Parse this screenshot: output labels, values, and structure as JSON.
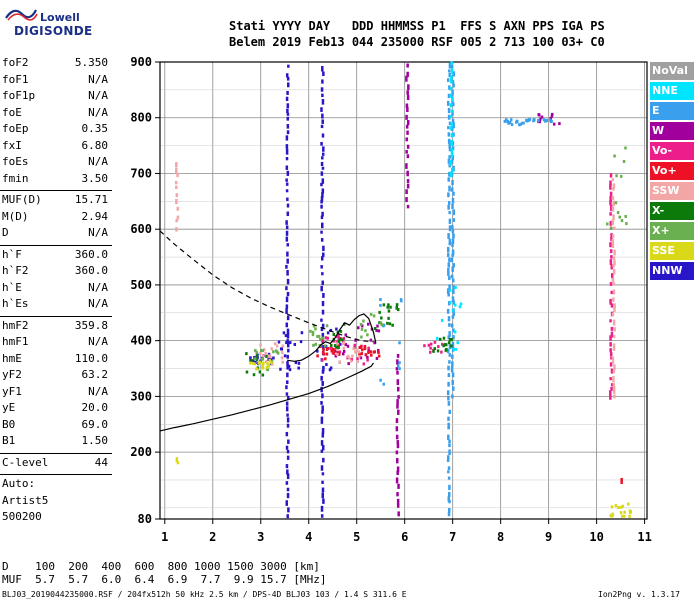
{
  "logo": {
    "line1": "Lowell",
    "line2": "DIGISONDE"
  },
  "header": {
    "line1": "Stati YYYY DAY   DDD HHMMSS P1  FFS S AXN PPS IGA PS",
    "line2": "Belem 2019 Feb13 044 235000 RSF 005 2 713 100 03+ C0"
  },
  "params": [
    {
      "label": "foF2",
      "value": "5.350"
    },
    {
      "label": "foF1",
      "value": "N/A"
    },
    {
      "label": "foF1p",
      "value": "N/A"
    },
    {
      "label": "foE",
      "value": "N/A"
    },
    {
      "label": "foEp",
      "value": "0.35"
    },
    {
      "label": "fxI",
      "value": "6.80"
    },
    {
      "label": "foEs",
      "value": "N/A"
    },
    {
      "label": "fmin",
      "value": "3.50"
    },
    {
      "sep": true
    },
    {
      "label": "MUF(D)",
      "value": "15.71"
    },
    {
      "label": "M(D)",
      "value": "2.94"
    },
    {
      "label": "D",
      "value": "N/A"
    },
    {
      "sep": true
    },
    {
      "label": "h`F",
      "value": "360.0"
    },
    {
      "label": "h`F2",
      "value": "360.0"
    },
    {
      "label": "h`E",
      "value": "N/A"
    },
    {
      "label": "h`Es",
      "value": "N/A"
    },
    {
      "sep": true
    },
    {
      "label": "hmF2",
      "value": "359.8"
    },
    {
      "label": "hmF1",
      "value": "N/A"
    },
    {
      "label": "hmE",
      "value": "110.0"
    },
    {
      "label": "yF2",
      "value": "63.2"
    },
    {
      "label": "yF1",
      "value": "N/A"
    },
    {
      "label": "yE",
      "value": "20.0"
    },
    {
      "label": "B0",
      "value": "69.0"
    },
    {
      "label": "B1",
      "value": "1.50"
    },
    {
      "sep": true
    },
    {
      "label": "C-level",
      "value": "44"
    },
    {
      "sep": true
    },
    {
      "label": "Auto:",
      "value": ""
    },
    {
      "label": "Artist5",
      "value": ""
    },
    {
      "label": "500200",
      "value": ""
    }
  ],
  "legend": [
    {
      "label": "NoVal",
      "color": "#a0a0a0"
    },
    {
      "label": "NNE",
      "color": "#00e5ff"
    },
    {
      "label": "E",
      "color": "#3aa0ee"
    },
    {
      "label": "W",
      "color": "#a0009c"
    },
    {
      "label": "Vo-",
      "color": "#ee1d8c"
    },
    {
      "label": "Vo+",
      "color": "#ee1126"
    },
    {
      "label": "SSW",
      "color": "#f2a6a6"
    },
    {
      "label": "X-",
      "color": "#0b7a0b"
    },
    {
      "label": "X+",
      "color": "#6aaf50"
    },
    {
      "label": "SSE",
      "color": "#d9d91a"
    },
    {
      "label": "NNW",
      "color": "#2a16c9"
    }
  ],
  "d_table": {
    "d_line": "D    100  200  400  600  800 1000 1500 3000 [km]",
    "muf_line": "MUF  5.7  5.7  6.0  6.4  6.9  7.7  9.9 15.7 [MHz]"
  },
  "footer": {
    "left": "BLJ03_2019044235000.RSF / 204fx512h 50 kHz 2.5 km / DPS-4D BLJ03 103 / 1.4 S 311.6 E",
    "right": "Ion2Png v. 1.3.17"
  },
  "chart_data": {
    "type": "scatter",
    "title": "",
    "xlabel": "",
    "ylabel": "",
    "x_ticks": [
      "1",
      "2",
      "3",
      "4",
      "5",
      "6",
      "7",
      "8",
      "9",
      "10",
      "11"
    ],
    "y_ticks": [
      "80",
      "200",
      "300",
      "400",
      "500",
      "600",
      "700",
      "800",
      "900"
    ],
    "xlim": [
      0.9,
      11.05
    ],
    "ylim": [
      80,
      900
    ],
    "grid": true,
    "series": [
      {
        "style": "solid",
        "points": [
          [
            0.9,
            238
          ],
          [
            1.2,
            244
          ],
          [
            1.6,
            251
          ],
          [
            2.0,
            259
          ],
          [
            2.4,
            267
          ],
          [
            2.8,
            276
          ],
          [
            3.2,
            285
          ],
          [
            3.6,
            295
          ],
          [
            4.0,
            305
          ],
          [
            4.4,
            318
          ],
          [
            4.8,
            333
          ],
          [
            5.1,
            345
          ],
          [
            5.3,
            354
          ],
          [
            5.35,
            360
          ]
        ]
      },
      {
        "style": "dashed",
        "points": [
          [
            0.9,
            597
          ],
          [
            1.2,
            573
          ],
          [
            1.6,
            545
          ],
          [
            2.0,
            518
          ],
          [
            2.4,
            495
          ],
          [
            2.8,
            476
          ],
          [
            3.2,
            460
          ],
          [
            3.6,
            446
          ],
          [
            4.0,
            432
          ],
          [
            4.4,
            419
          ],
          [
            4.8,
            407
          ],
          [
            5.1,
            400
          ],
          [
            5.35,
            398
          ]
        ]
      },
      {
        "style": "solid",
        "points": [
          [
            3.55,
            365
          ],
          [
            3.7,
            363
          ],
          [
            3.85,
            365
          ],
          [
            4.0,
            372
          ],
          [
            4.15,
            382
          ],
          [
            4.25,
            392
          ],
          [
            4.35,
            398
          ],
          [
            4.45,
            395
          ],
          [
            4.55,
            405
          ],
          [
            4.65,
            420
          ],
          [
            4.75,
            432
          ],
          [
            4.85,
            428
          ],
          [
            4.95,
            438
          ],
          [
            5.05,
            445
          ],
          [
            5.15,
            448
          ],
          [
            5.25,
            440
          ],
          [
            5.35,
            415
          ],
          [
            5.4,
            395
          ]
        ]
      }
    ],
    "echo_traces": [
      {
        "name": "NNW",
        "color": "#2a16c9",
        "segments": [
          [
            3.55,
            85,
            900
          ],
          [
            4.28,
            85,
            900
          ]
        ],
        "scatter": [
          [
            3.6,
            340,
            420
          ],
          [
            4.4,
            350,
            440
          ],
          [
            3.0,
            360,
            380
          ]
        ]
      },
      {
        "name": "W",
        "color": "#a0009c",
        "segments": [
          [
            6.05,
            640,
            900
          ],
          [
            5.85,
            90,
            380
          ]
        ],
        "scatter": [
          [
            5.2,
            370,
            440
          ],
          [
            4.7,
            360,
            420
          ],
          [
            9.0,
            790,
            810
          ]
        ]
      },
      {
        "name": "E",
        "color": "#3aa0ee",
        "segments": [
          [
            6.92,
            90,
            900
          ],
          [
            7.0,
            300,
            900
          ]
        ],
        "scatter": [
          [
            8.3,
            790,
            800
          ],
          [
            8.8,
            795,
            800
          ],
          [
            5.7,
            320,
            520
          ]
        ]
      },
      {
        "name": "Vo-",
        "color": "#ee1d8c",
        "segments": [
          [
            10.3,
            300,
            700
          ]
        ],
        "scatter": [
          [
            4.5,
            360,
            420
          ],
          [
            5.0,
            360,
            400
          ],
          [
            6.6,
            380,
            400
          ]
        ]
      },
      {
        "name": "Vo+",
        "color": "#ee1126",
        "segments": [
          [
            10.5,
            150,
            160
          ]
        ],
        "scatter": [
          [
            4.4,
            370,
            400
          ],
          [
            5.2,
            375,
            395
          ]
        ]
      },
      {
        "name": "SSW",
        "color": "#f2a6a6",
        "segments": [
          [
            1.25,
            600,
            720
          ],
          [
            10.35,
            300,
            700
          ]
        ],
        "scatter": [
          [
            3.2,
            360,
            400
          ],
          [
            4.8,
            360,
            400
          ]
        ]
      },
      {
        "name": "X-",
        "color": "#0b7a0b",
        "segments": [],
        "scatter": [
          [
            2.9,
            340,
            380
          ],
          [
            4.6,
            390,
            440
          ],
          [
            5.6,
            420,
            470
          ],
          [
            6.8,
            380,
            410
          ]
        ]
      },
      {
        "name": "X+",
        "color": "#6aaf50",
        "segments": [],
        "scatter": [
          [
            3.1,
            350,
            390
          ],
          [
            4.2,
            390,
            430
          ],
          [
            5.3,
            400,
            450
          ],
          [
            10.4,
            600,
            750
          ]
        ]
      },
      {
        "name": "SSE",
        "color": "#d9d91a",
        "segments": [
          [
            1.25,
            180,
            195
          ]
        ],
        "scatter": [
          [
            3.0,
            350,
            370
          ],
          [
            10.5,
            85,
            110
          ]
        ]
      },
      {
        "name": "NNE",
        "color": "#00e5ff",
        "segments": [
          [
            6.97,
            700,
            900
          ]
        ],
        "scatter": [
          [
            6.9,
            380,
            500
          ]
        ]
      }
    ]
  }
}
